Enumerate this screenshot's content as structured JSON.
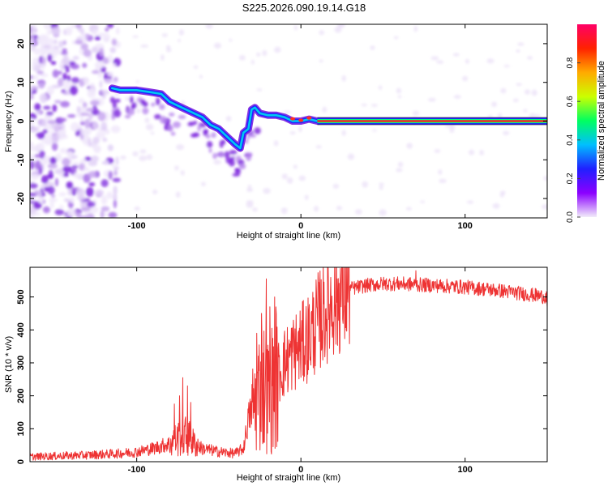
{
  "title": "S225.2026.090.19.14.G18",
  "chart_data": [
    {
      "type": "heatmap",
      "name": "spectrogram",
      "xlabel": "Height of straight line (km)",
      "ylabel": "Frequency (Hz)",
      "xlim": [
        -165,
        150
      ],
      "ylim": [
        -25,
        25
      ],
      "xticks": [
        -100,
        0,
        100
      ],
      "yticks": [
        -20,
        -10,
        0,
        10,
        20
      ],
      "colorbar": {
        "label": "Normalized spectral amplitude",
        "range": [
          0,
          1
        ],
        "ticks": [
          "0.0",
          "0.2",
          "0.4",
          "0.6",
          "0.8"
        ],
        "colors": [
          "#f2ecfa",
          "#8b00ff",
          "#2020ff",
          "#00bfff",
          "#00ff60",
          "#ccff00",
          "#ffaa00",
          "#ff2200",
          "#ff0066"
        ]
      },
      "ridge": {
        "x": [
          -115,
          -110,
          -100,
          -92,
          -85,
          -80,
          -75,
          -70,
          -65,
          -60,
          -55,
          -50,
          -45,
          -40,
          -37,
          -35,
          -32,
          -30,
          -28,
          -25,
          -20,
          -15,
          -10,
          -5,
          0,
          5,
          10,
          20,
          50,
          100,
          150
        ],
        "freq": [
          8.5,
          8,
          8,
          7.5,
          7,
          5,
          4,
          3,
          2,
          1,
          -1,
          -2,
          -4,
          -6,
          -7,
          -3,
          -2,
          3,
          3.5,
          2,
          1.5,
          1.5,
          1,
          0,
          0,
          0.5,
          0,
          0,
          0,
          0,
          0
        ]
      },
      "noise_region_x": [
        -165,
        -115
      ]
    },
    {
      "type": "line",
      "name": "snr",
      "xlabel": "Height of straight line (km)",
      "ylabel": "SNR (10 * v/v)",
      "xlim": [
        -165,
        150
      ],
      "ylim": [
        0,
        590
      ],
      "xticks": [
        -100,
        0,
        100
      ],
      "yticks": [
        0,
        100,
        200,
        300,
        400,
        500
      ],
      "color": "#ee3333",
      "envelope": {
        "x": [
          -165,
          -130,
          -110,
          -100,
          -90,
          -80,
          -75,
          -70,
          -65,
          -60,
          -50,
          -40,
          -35,
          -32,
          -28,
          -25,
          -22,
          -20,
          -17,
          -15,
          -10,
          -5,
          0,
          5,
          10,
          15,
          20,
          25,
          30,
          40,
          50,
          60,
          80,
          100,
          120,
          150
        ],
        "y": [
          15,
          20,
          25,
          30,
          40,
          55,
          70,
          80,
          55,
          40,
          30,
          25,
          40,
          130,
          180,
          220,
          230,
          200,
          230,
          260,
          300,
          330,
          350,
          380,
          420,
          460,
          490,
          510,
          525,
          535,
          540,
          540,
          535,
          530,
          520,
          500
        ]
      },
      "spikes": [
        {
          "x": -77,
          "y": 175
        },
        {
          "x": -74,
          "y": 200
        },
        {
          "x": -72,
          "y": 255
        },
        {
          "x": -69,
          "y": 230
        },
        {
          "x": -67,
          "y": 180
        },
        {
          "x": -27,
          "y": 390
        },
        {
          "x": -24,
          "y": 450
        },
        {
          "x": -21,
          "y": 555
        },
        {
          "x": -19,
          "y": 470
        },
        {
          "x": -16,
          "y": 500
        },
        {
          "x": 10,
          "y": 465
        },
        {
          "x": 22,
          "y": 555
        },
        {
          "x": 70,
          "y": 580
        },
        {
          "x": 150,
          "y": 470
        }
      ]
    }
  ]
}
